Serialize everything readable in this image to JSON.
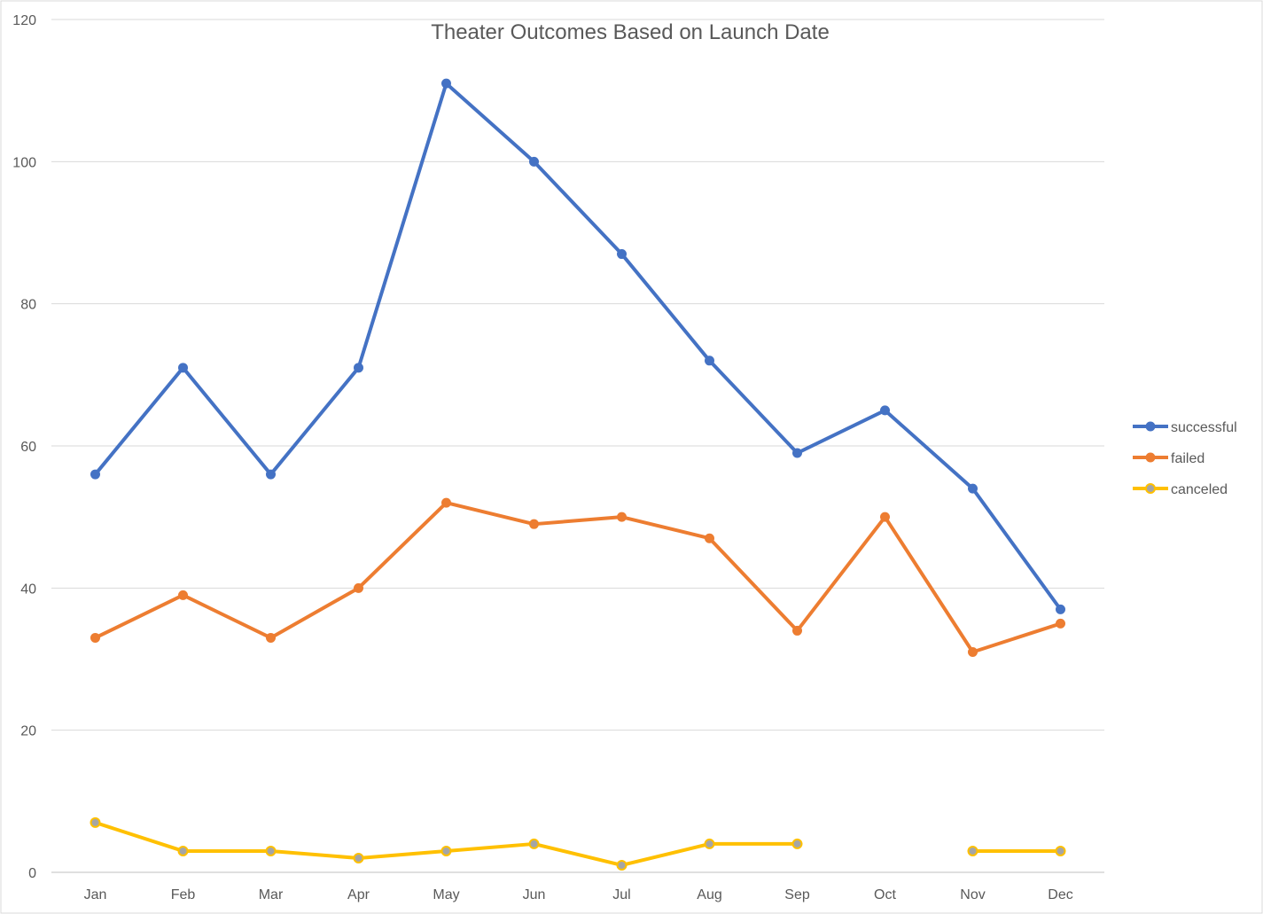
{
  "chart_data": {
    "type": "line",
    "title": "Theater Outcomes Based on Launch Date",
    "xlabel": "",
    "ylabel": "",
    "categories": [
      "Jan",
      "Feb",
      "Mar",
      "Apr",
      "May",
      "Jun",
      "Jul",
      "Aug",
      "Sep",
      "Oct",
      "Nov",
      "Dec"
    ],
    "ylim": [
      0,
      120
    ],
    "yticks": [
      0,
      20,
      40,
      60,
      80,
      100,
      120
    ],
    "grid": true,
    "legend": "right",
    "series": [
      {
        "name": "successful",
        "color": "#4472C4",
        "values": [
          56,
          71,
          56,
          71,
          111,
          100,
          87,
          72,
          59,
          65,
          54,
          37
        ]
      },
      {
        "name": "failed",
        "color": "#ED7D31",
        "values": [
          33,
          39,
          33,
          40,
          52,
          49,
          50,
          47,
          34,
          50,
          31,
          35
        ]
      },
      {
        "name": "canceled",
        "color": "#FFC000",
        "values": [
          7,
          3,
          3,
          2,
          3,
          4,
          1,
          4,
          4,
          null,
          3,
          3
        ]
      }
    ]
  }
}
